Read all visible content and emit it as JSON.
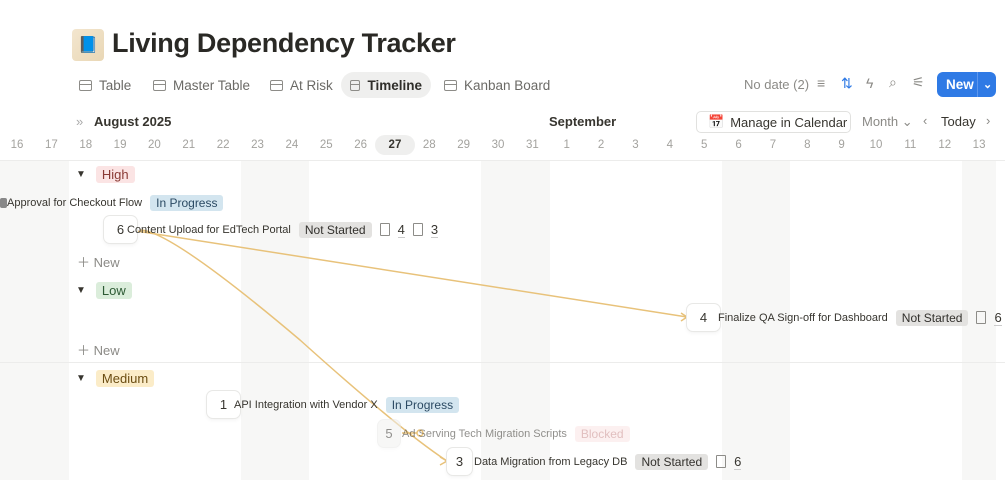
{
  "page": {
    "title": "Living Dependency Tracker",
    "logo_icon": "book-cover"
  },
  "tabs": [
    {
      "label": "Table",
      "icon": "table-icon"
    },
    {
      "label": "Master Table",
      "icon": "table-icon"
    },
    {
      "label": "At Risk",
      "icon": "table-icon"
    },
    {
      "label": "Timeline",
      "icon": "timeline-icon",
      "active": true
    },
    {
      "label": "Kanban Board",
      "icon": "board-icon"
    }
  ],
  "toolbar": {
    "no_date": "No date (2)",
    "new_label": "New",
    "accent": "#2f7ae5",
    "manage_calendar": "Manage in Calendar",
    "scale": "Month",
    "today": "Today"
  },
  "timeline": {
    "month_left": "August 2025",
    "month_right": "September",
    "days": [
      "16",
      "17",
      "18",
      "19",
      "20",
      "21",
      "22",
      "23",
      "24",
      "25",
      "26",
      "27",
      "28",
      "29",
      "30",
      "31",
      "1",
      "2",
      "3",
      "4",
      "5",
      "6",
      "7",
      "8",
      "9",
      "10",
      "11",
      "12",
      "13"
    ],
    "today": "27"
  },
  "groups": [
    {
      "label": "High",
      "color": "#fbe4e4",
      "text": "#8a3a35",
      "add": "New"
    },
    {
      "label": "Low",
      "color": "#dbeddb",
      "text": "#2d5a34",
      "add": "New"
    },
    {
      "label": "Medium",
      "color": "#fbecc8",
      "text": "#6b4d12"
    }
  ],
  "items": [
    {
      "id": "",
      "name": "Approval for Checkout Flow",
      "status": "In Progress"
    },
    {
      "id": "6",
      "name": "Content Upload for EdTech Portal",
      "status": "Not Started",
      "count1": "4",
      "count2": "3"
    },
    {
      "id": "4",
      "name": "Finalize QA Sign-off for Dashboard",
      "status": "Not Started",
      "count1": "6"
    },
    {
      "id": "1",
      "name": "API Integration with Vendor X",
      "status": "In Progress"
    },
    {
      "id": "5",
      "name": "Ad Serving Tech Migration Scripts",
      "status": "Blocked"
    },
    {
      "id": "3",
      "name": "Data Migration from Legacy DB",
      "status": "Not Started",
      "count1": "6"
    }
  ],
  "dependency_color": "#e8c27a"
}
